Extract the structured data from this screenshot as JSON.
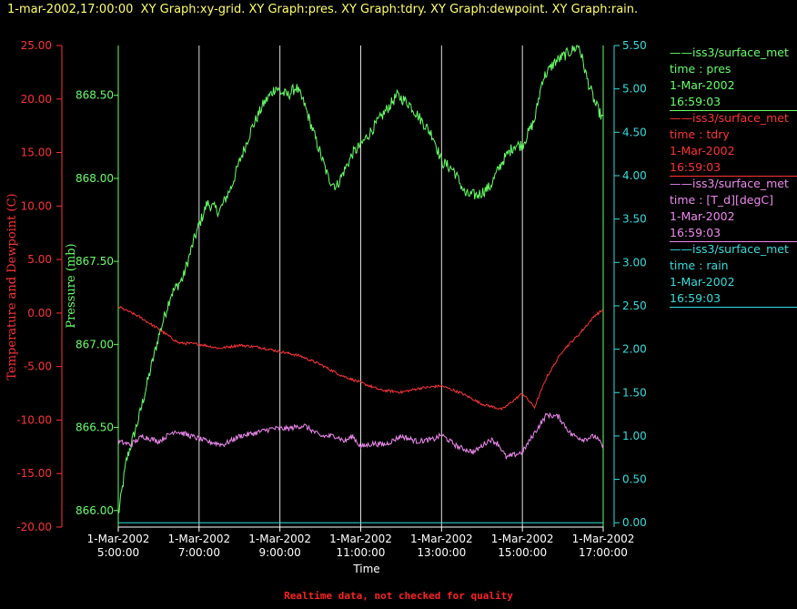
{
  "header": {
    "timestamp": "1-mar-2002,17:00:00",
    "graphs": "XY Graph:xy-grid.  XY Graph:pres.  XY Graph:tdry.  XY Graph:dewpoint.  XY Graph:rain."
  },
  "footer": {
    "note": "Realtime data, not checked for quality"
  },
  "legend": [
    {
      "source": "iss3/surface_met",
      "field": "time : pres",
      "date": "1-Mar-2002",
      "time": "16:59:03",
      "color": "#66ff66"
    },
    {
      "source": "iss3/surface_met",
      "field": "time : tdry",
      "date": "1-Mar-2002",
      "time": "16:59:03",
      "color": "#ff3333"
    },
    {
      "source": "iss3/surface_met",
      "field": "time : [T_d][degC]",
      "date": "1-Mar-2002",
      "time": "16:59:03",
      "color": "#ee88ee"
    },
    {
      "source": "iss3/surface_met",
      "field": "time : rain",
      "date": "1-Mar-2002",
      "time": "16:59:03",
      "color": "#33dddd"
    }
  ],
  "chart_data": {
    "type": "line",
    "xlabel": "Time",
    "x_ticks": [
      {
        "date": "1-Mar-2002",
        "time": "5:00:00",
        "hour": 5
      },
      {
        "date": "1-Mar-2002",
        "time": "7:00:00",
        "hour": 7
      },
      {
        "date": "1-Mar-2002",
        "time": "9:00:00",
        "hour": 9
      },
      {
        "date": "1-Mar-2002",
        "time": "11:00:00",
        "hour": 11
      },
      {
        "date": "1-Mar-2002",
        "time": "13:00:00",
        "hour": 13
      },
      {
        "date": "1-Mar-2002",
        "time": "15:00:00",
        "hour": 15
      },
      {
        "date": "1-Mar-2002",
        "time": "17:00:00",
        "hour": 17
      }
    ],
    "xlim": [
      5,
      17
    ],
    "grid": "vertical",
    "axes": {
      "temp": {
        "label": "Temperature and Dewpoint (C)",
        "range": [
          -20,
          25
        ],
        "ticks": [
          "-20.00",
          "-15.00",
          "-10.00",
          "-5.00",
          "0.00",
          "5.00",
          "10.00",
          "15.00",
          "20.00",
          "25.00"
        ],
        "color": "#ff3333"
      },
      "pres": {
        "label": "Pressure (mb)",
        "range": [
          865.9,
          868.8
        ],
        "ticks": [
          "866.00",
          "866.50",
          "867.00",
          "867.50",
          "868.00",
          "868.50"
        ],
        "color": "#66ff66"
      },
      "rain": {
        "range": [
          -0.05,
          5.5
        ],
        "ticks": [
          "0.00",
          "0.50",
          "1.00",
          "1.50",
          "2.00",
          "2.50",
          "3.00",
          "3.50",
          "4.00",
          "4.50",
          "5.00",
          "5.50"
        ],
        "color": "#33dddd"
      }
    },
    "series": [
      {
        "name": "time : pres",
        "axis": "pres",
        "color": "#66ff66",
        "noise": 0.035,
        "x": [
          5.0,
          5.2,
          5.5,
          5.8,
          6.0,
          6.3,
          6.6,
          6.9,
          7.2,
          7.5,
          7.8,
          8.0,
          8.3,
          8.6,
          8.9,
          9.0,
          9.2,
          9.4,
          9.6,
          9.8,
          10.0,
          10.2,
          10.4,
          10.6,
          10.8,
          11.0,
          11.3,
          11.6,
          11.9,
          12.2,
          12.5,
          12.8,
          13.0,
          13.3,
          13.6,
          13.9,
          14.2,
          14.5,
          14.8,
          15.0,
          15.3,
          15.5,
          15.8,
          16.1,
          16.4,
          16.6,
          16.8,
          17.0
        ],
        "y": [
          865.97,
          866.3,
          866.55,
          866.85,
          867.05,
          867.3,
          867.4,
          867.65,
          867.85,
          867.8,
          867.95,
          868.1,
          868.3,
          868.45,
          868.55,
          868.52,
          868.5,
          868.55,
          868.45,
          868.3,
          868.15,
          868.0,
          867.95,
          868.05,
          868.15,
          868.2,
          868.3,
          868.4,
          868.5,
          868.45,
          868.35,
          868.25,
          868.1,
          868.05,
          867.9,
          867.9,
          867.95,
          868.1,
          868.2,
          868.2,
          868.35,
          868.6,
          868.7,
          868.75,
          868.8,
          868.6,
          868.45,
          868.35
        ]
      },
      {
        "name": "time : tdry",
        "axis": "temp",
        "color": "#ff3333",
        "noise": 0.12,
        "x": [
          5.0,
          5.5,
          6.0,
          6.5,
          7.0,
          7.5,
          8.0,
          8.5,
          9.0,
          9.5,
          10.0,
          10.5,
          11.0,
          11.5,
          12.0,
          12.5,
          13.0,
          13.5,
          14.0,
          14.5,
          15.0,
          15.3,
          15.6,
          16.0,
          16.4,
          16.8,
          17.0
        ],
        "y": [
          0.6,
          -0.3,
          -1.5,
          -2.8,
          -2.9,
          -3.3,
          -3.0,
          -3.2,
          -3.6,
          -4.0,
          -4.8,
          -5.8,
          -6.5,
          -7.2,
          -7.4,
          -7.0,
          -6.8,
          -7.5,
          -8.5,
          -9.0,
          -7.5,
          -8.8,
          -6.0,
          -3.5,
          -2.0,
          -0.2,
          0.3
        ]
      },
      {
        "name": "time : [T_d][degC]",
        "axis": "temp",
        "color": "#ee88ee",
        "noise": 0.25,
        "x": [
          5.0,
          5.3,
          5.6,
          6.0,
          6.4,
          6.8,
          7.2,
          7.6,
          8.0,
          8.4,
          8.8,
          9.2,
          9.6,
          10.0,
          10.4,
          10.6,
          10.8,
          11.0,
          11.3,
          11.6,
          12.0,
          12.4,
          12.8,
          13.0,
          13.4,
          13.8,
          14.2,
          14.4,
          14.6,
          15.0,
          15.3,
          15.6,
          15.9,
          16.2,
          16.5,
          16.8,
          17.0
        ],
        "y": [
          -12.0,
          -12.3,
          -11.5,
          -12.0,
          -11.0,
          -11.5,
          -12.0,
          -12.3,
          -11.5,
          -11.2,
          -10.8,
          -10.8,
          -10.5,
          -11.5,
          -11.5,
          -12.0,
          -11.5,
          -12.5,
          -12.2,
          -12.3,
          -11.5,
          -12.0,
          -11.8,
          -11.4,
          -12.5,
          -13.0,
          -11.8,
          -12.2,
          -13.5,
          -13.0,
          -11.2,
          -9.5,
          -9.7,
          -11.3,
          -11.8,
          -11.5,
          -12.5
        ]
      },
      {
        "name": "time : rain",
        "axis": "rain",
        "color": "#33dddd",
        "noise": 0,
        "x": [
          5.0,
          17.0
        ],
        "y": [
          0.0,
          0.0
        ]
      }
    ]
  }
}
